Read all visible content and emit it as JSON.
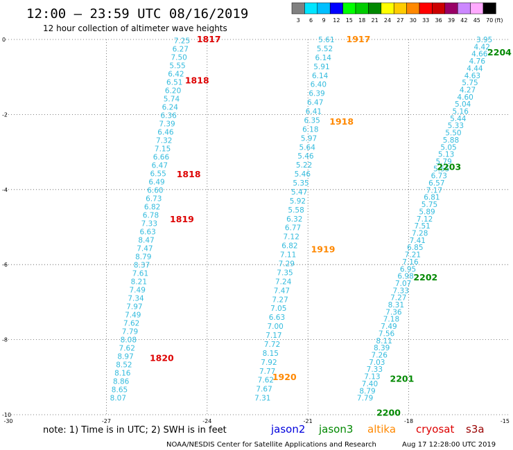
{
  "header": {
    "title": "12:00 – 23:59 UTC 08/16/2019",
    "subtitle": "12 hour collection of altimeter wave heights"
  },
  "color_scale": {
    "labels": [
      "3",
      "6",
      "9",
      "12",
      "15",
      "18",
      "21",
      "24",
      "27",
      "30",
      "33",
      "36",
      "39",
      "42",
      "45",
      "70"
    ],
    "unit": "(ft)",
    "colors": [
      "#808080",
      "#00e5ff",
      "#00bfff",
      "#0000ff",
      "#00ff00",
      "#00cc00",
      "#008800",
      "#ffff00",
      "#ffcc00",
      "#ff8800",
      "#ff0000",
      "#cc0000",
      "#990066",
      "#cc88ff",
      "#ffaaff",
      "#000000"
    ]
  },
  "note": "note:  1) Time is in UTC; 2) SWH is in feet",
  "satellites": [
    {
      "name": "jason2",
      "color": "#0000dd"
    },
    {
      "name": "jason3",
      "color": "#008800"
    },
    {
      "name": "altika",
      "color": "#ff8800"
    },
    {
      "name": "cryosat",
      "color": "#dd0000"
    },
    {
      "name": "s3a",
      "color": "#990000"
    }
  ],
  "footer": {
    "credit": "NOAA/NESDIS Center for Satellite Applications and Research",
    "timestamp": "Aug 17 12:28:00 UTC 2019"
  },
  "chart_data": {
    "type": "scatter",
    "title": "12:00 – 23:59 UTC 08/16/2019",
    "subtitle": "12 hour collection of altimeter wave heights",
    "xlabel": "",
    "ylabel": "",
    "xlim": [
      -30,
      -15
    ],
    "ylim": [
      -10,
      0
    ],
    "x_ticks": [
      -30,
      -27,
      -24,
      -21,
      -18,
      -15
    ],
    "y_ticks": [
      0,
      -2,
      -4,
      -6,
      -8,
      -10
    ],
    "grid": true,
    "value_color": "#33bbdd",
    "tracks": [
      {
        "satellite": "cryosat",
        "color": "#dd0000",
        "start": [
          -24.75,
          -0.03
        ],
        "end": [
          -26.65,
          -9.55
        ],
        "values": [
          "7.25",
          "6.27",
          "7.50",
          "5.55",
          "6.42",
          "6.51",
          "6.20",
          "5.74",
          "6.24",
          "6.36",
          "7.39",
          "6.46",
          "7.32",
          "7.15",
          "6.66",
          "6.47",
          "6.55",
          "6.49",
          "6.60",
          "6.73",
          "6.82",
          "6.78",
          "7.33",
          "6.63",
          "8.47",
          "7.47",
          "8.79",
          "8.37",
          "7.61",
          "8.21",
          "7.49",
          "7.34",
          "7.97",
          "7.49",
          "7.62",
          "7.79",
          "8.08",
          "7.62",
          "8.97",
          "8.52",
          "8.16",
          "8.86",
          "8.65",
          "8.07"
        ],
        "time_labels": [
          {
            "text": "1817",
            "x": -23.95,
            "y": 0.0
          },
          {
            "text": "1818",
            "x": -24.3,
            "y": -1.1
          },
          {
            "text": "1818",
            "x": -24.55,
            "y": -3.6
          },
          {
            "text": "1819",
            "x": -24.75,
            "y": -4.8
          },
          {
            "text": "1820",
            "x": -25.35,
            "y": -8.5
          }
        ]
      },
      {
        "satellite": "altika",
        "color": "#ff8800",
        "start": [
          -20.45,
          0.0
        ],
        "end": [
          -22.35,
          -9.55
        ],
        "values": [
          "5.61",
          "5.52",
          "6.14",
          "5.91",
          "6.14",
          "6.40",
          "6.39",
          "6.47",
          "6.41",
          "6.35",
          "6.18",
          "5.97",
          "5.64",
          "5.46",
          "5.22",
          "5.46",
          "5.35",
          "5.47",
          "5.92",
          "5.58",
          "6.32",
          "6.77",
          "7.12",
          "6.82",
          "7.11",
          "7.29",
          "7.35",
          "7.24",
          "7.47",
          "7.27",
          "7.05",
          "6.63",
          "7.00",
          "7.17",
          "7.72",
          "8.15",
          "7.92",
          "7.77",
          "7.62",
          "7.67",
          "7.31"
        ],
        "time_labels": [
          {
            "text": "1917",
            "x": -19.5,
            "y": 0.0
          },
          {
            "text": "1918",
            "x": -20.0,
            "y": -2.2
          },
          {
            "text": "1919",
            "x": -20.55,
            "y": -5.6
          },
          {
            "text": "1920",
            "x": -21.7,
            "y": -9.0
          }
        ]
      },
      {
        "satellite": "jason3",
        "color": "#008800",
        "start": [
          -15.75,
          0.0
        ],
        "end": [
          -19.3,
          -9.55
        ],
        "values": [
          "3.95",
          "4.42",
          "4.66",
          "4.76",
          "4.44",
          "4.63",
          "5.75",
          "4.27",
          "4.60",
          "5.04",
          "5.16",
          "5.44",
          "5.33",
          "5.50",
          "5.88",
          "5.05",
          "5.13",
          "5.79",
          "5.55",
          "6.73",
          "6.57",
          "7.17",
          "6.81",
          "5.75",
          "5.89",
          "7.12",
          "7.51",
          "7.28",
          "7.41",
          "6.85",
          "7.21",
          "7.16",
          "6.95",
          "6.98",
          "7.07",
          "7.33",
          "7.27",
          "8.31",
          "7.36",
          "7.18",
          "7.49",
          "7.56",
          "8.11",
          "8.39",
          "7.26",
          "7.03",
          "7.33",
          "7.13",
          "7.40",
          "8.79",
          "7.79"
        ],
        "time_labels": [
          {
            "text": "2204",
            "x": -15.3,
            "y": -0.35
          },
          {
            "text": "2203",
            "x": -16.8,
            "y": -3.4
          },
          {
            "text": "2202",
            "x": -17.5,
            "y": -6.35
          },
          {
            "text": "2201",
            "x": -18.2,
            "y": -9.05
          },
          {
            "text": "2200",
            "x": -18.6,
            "y": -9.95
          }
        ]
      }
    ]
  }
}
